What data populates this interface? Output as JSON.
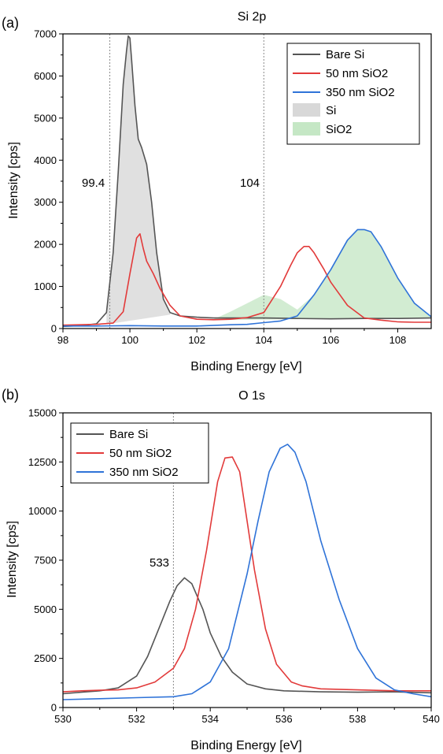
{
  "chart_data": [
    {
      "panel_label": "(a)",
      "type": "line",
      "title": "Si 2p",
      "xlabel": "Binding Energy [eV]",
      "ylabel": "Intensity [cps]",
      "xlim": [
        98,
        109
      ],
      "ylim": [
        0,
        7000
      ],
      "xticks": [
        "98",
        "100",
        "102",
        "104",
        "106",
        "108"
      ],
      "yticks": [
        "0",
        "1000",
        "2000",
        "3000",
        "4000",
        "5000",
        "6000",
        "7000"
      ],
      "grid": false,
      "legend_position": "top-right",
      "series": [
        {
          "name": "Bare Si",
          "color": "#555555",
          "x": [
            98.0,
            98.5,
            99.0,
            99.3,
            99.5,
            99.65,
            99.8,
            99.9,
            99.95,
            100.0,
            100.05,
            100.15,
            100.25,
            100.35,
            100.5,
            100.65,
            100.8,
            101.0,
            101.2,
            101.5,
            102.0,
            102.5,
            103.0,
            103.5,
            104.0,
            105.0,
            106.0,
            107.0,
            108.0,
            109.0
          ],
          "y": [
            50,
            70,
            110,
            380,
            1800,
            3700,
            5800,
            6600,
            6950,
            6900,
            6400,
            5300,
            4500,
            4300,
            3900,
            3000,
            1800,
            700,
            380,
            300,
            270,
            250,
            250,
            250,
            250,
            240,
            230,
            240,
            240,
            250
          ]
        },
        {
          "name": "50 nm SiO2",
          "color": "#e23a3a",
          "x": [
            98.0,
            98.5,
            99.0,
            99.5,
            99.8,
            100.0,
            100.2,
            100.3,
            100.4,
            100.5,
            100.7,
            100.9,
            101.2,
            101.5,
            102.0,
            102.5,
            103.0,
            103.5,
            104.0,
            104.5,
            104.8,
            105.0,
            105.2,
            105.35,
            105.5,
            105.8,
            106.0,
            106.5,
            107.0,
            107.5,
            108.0,
            108.5,
            109.0
          ],
          "y": [
            80,
            90,
            100,
            130,
            400,
            1300,
            2150,
            2250,
            1900,
            1600,
            1300,
            950,
            550,
            300,
            220,
            210,
            220,
            260,
            380,
            1000,
            1500,
            1800,
            1950,
            1950,
            1800,
            1400,
            1100,
            550,
            250,
            200,
            160,
            150,
            150
          ]
        },
        {
          "name": "350 nm SiO2",
          "color": "#2f73d8",
          "x": [
            98.0,
            99.0,
            100.0,
            101.0,
            102.0,
            103.0,
            103.5,
            104.0,
            104.5,
            105.0,
            105.5,
            106.0,
            106.5,
            106.8,
            107.0,
            107.2,
            107.5,
            108.0,
            108.5,
            109.0
          ],
          "y": [
            60,
            60,
            70,
            60,
            60,
            90,
            100,
            140,
            180,
            300,
            800,
            1400,
            2100,
            2350,
            2350,
            2300,
            1950,
            1200,
            600,
            280
          ]
        }
      ],
      "fills": [
        {
          "name": "Si",
          "color": "#9e9e9e",
          "opacity": 0.32,
          "x": [
            99.3,
            99.5,
            99.65,
            99.8,
            99.9,
            99.95,
            100.0,
            100.05,
            100.15,
            100.25,
            100.35,
            100.5,
            100.65,
            100.8,
            101.0,
            101.2
          ],
          "y": [
            380,
            1800,
            3700,
            5800,
            6600,
            6950,
            6900,
            6400,
            5300,
            4500,
            4300,
            3900,
            3000,
            1800,
            700,
            380
          ],
          "baseline": [
            [
              99.3,
              100
            ],
            [
              101.2,
              330
            ]
          ]
        },
        {
          "name": "SiO2",
          "color": "#7fc97f",
          "opacity": 0.35,
          "x": [
            102.5,
            103.0,
            103.5,
            104.0,
            104.5,
            105.0,
            105.5,
            106.0,
            106.5,
            106.8,
            107.0,
            107.2,
            107.5,
            108.0,
            108.5,
            109.0
          ],
          "y": [
            220,
            400,
            600,
            800,
            700,
            450,
            800,
            1400,
            2100,
            2350,
            2350,
            2300,
            1950,
            1200,
            600,
            280
          ],
          "baseline": [
            [
              102.5,
              200
            ],
            [
              109.0,
              260
            ]
          ]
        }
      ],
      "annotations": [
        {
          "text": "99.4",
          "x": 99.4
        },
        {
          "text": "104",
          "x": 104.0
        }
      ],
      "reference_lines_x": [
        99.4,
        104.0
      ]
    },
    {
      "panel_label": "(b)",
      "type": "line",
      "title": "O 1s",
      "xlabel": "Binding Energy [eV]",
      "ylabel": "Intensity [cps]",
      "xlim": [
        530,
        540
      ],
      "ylim": [
        0,
        15000
      ],
      "xticks": [
        "530",
        "532",
        "534",
        "536",
        "538",
        "540"
      ],
      "yticks": [
        "0",
        "2500",
        "5000",
        "7500",
        "10000",
        "12500",
        "15000"
      ],
      "grid": false,
      "legend_position": "top-left",
      "series": [
        {
          "name": "Bare Si",
          "color": "#555555",
          "x": [
            530.0,
            530.5,
            531.0,
            531.5,
            532.0,
            532.3,
            532.6,
            532.9,
            533.1,
            533.3,
            533.5,
            533.8,
            534.0,
            534.3,
            534.6,
            535.0,
            535.5,
            536.0,
            537.0,
            538.0,
            539.0,
            540.0
          ],
          "y": [
            700,
            780,
            850,
            1000,
            1600,
            2600,
            4000,
            5400,
            6200,
            6600,
            6300,
            5000,
            3800,
            2600,
            1800,
            1200,
            950,
            850,
            800,
            780,
            800,
            750
          ]
        },
        {
          "name": "50 nm SiO2",
          "color": "#e23a3a",
          "x": [
            530.0,
            530.5,
            531.0,
            531.5,
            532.0,
            532.5,
            533.0,
            533.3,
            533.6,
            533.9,
            534.2,
            534.4,
            534.6,
            534.8,
            535.0,
            535.2,
            535.5,
            535.8,
            536.2,
            536.5,
            537.0,
            538.0,
            539.0,
            540.0
          ],
          "y": [
            800,
            850,
            880,
            900,
            1000,
            1300,
            2000,
            3000,
            5000,
            8000,
            11500,
            12700,
            12750,
            12000,
            9500,
            7000,
            4000,
            2200,
            1300,
            1100,
            950,
            900,
            850,
            850
          ]
        },
        {
          "name": "350 nm SiO2",
          "color": "#2f73d8",
          "x": [
            530.0,
            531.0,
            532.0,
            533.0,
            533.5,
            534.0,
            534.5,
            535.0,
            535.3,
            535.6,
            535.9,
            536.1,
            536.3,
            536.6,
            537.0,
            537.5,
            538.0,
            538.5,
            539.0,
            539.5,
            540.0
          ],
          "y": [
            400,
            450,
            500,
            550,
            700,
            1300,
            3000,
            6800,
            9500,
            12000,
            13200,
            13400,
            13000,
            11500,
            8500,
            5500,
            3000,
            1500,
            900,
            700,
            550
          ]
        }
      ],
      "annotations": [
        {
          "text": "533",
          "x": 533.0
        }
      ],
      "reference_lines_x": [
        533.0
      ]
    }
  ]
}
